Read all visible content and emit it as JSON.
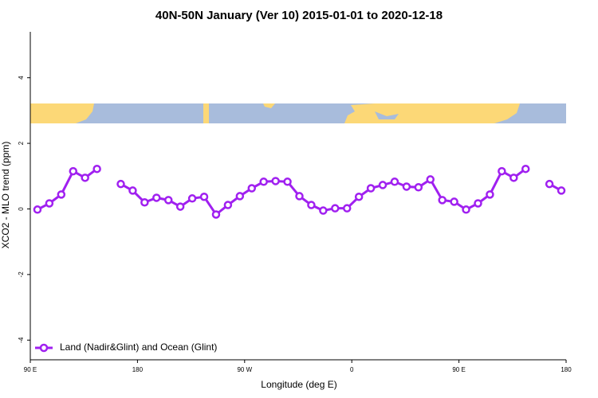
{
  "chart_data": {
    "type": "line",
    "title": "40N-50N January (Ver 10)   2015-01-01 to 2020-12-18",
    "x_label": "Longitude (deg E)",
    "y_label": "XCO2 - MLO trend (ppm)",
    "x": [
      96,
      106,
      116,
      126,
      136,
      146,
      156,
      166,
      176,
      186,
      196,
      206,
      216,
      226,
      236,
      246,
      256,
      266,
      276,
      286,
      296,
      306,
      316,
      326,
      336,
      346,
      356,
      366,
      376,
      386,
      396,
      406,
      416,
      426,
      436,
      446,
      456,
      466,
      476,
      486,
      496,
      506,
      516,
      526,
      536
    ],
    "series": [
      {
        "name": "Land (Nadir&Glint) and Ocean (Glint)",
        "color": "#a020f0",
        "values": [
          -0.02,
          0.17,
          0.44,
          1.15,
          0.95,
          1.22,
          null,
          0.76,
          0.56,
          0.2,
          0.34,
          0.27,
          0.07,
          0.32,
          0.37,
          -0.17,
          0.12,
          0.39,
          0.63,
          0.83,
          0.85,
          0.83,
          0.39,
          0.12,
          -0.05,
          0.02,
          0.02,
          0.37,
          0.63,
          0.73,
          0.83,
          0.68,
          0.66,
          0.9,
          0.27,
          0.22,
          -0.02,
          0.17,
          0.44,
          1.15,
          0.95,
          1.22,
          null,
          0.76,
          0.56
        ]
      }
    ],
    "xlim": [
      90,
      540
    ],
    "xticks": [
      {
        "value": 90,
        "label": "90 E"
      },
      {
        "value": 180,
        "label": "180"
      },
      {
        "value": 270,
        "label": "90 W"
      },
      {
        "value": 360,
        "label": "0"
      },
      {
        "value": 450,
        "label": "90 E"
      },
      {
        "value": 540,
        "label": "180"
      }
    ],
    "ylim": [
      -4.6,
      5.4
    ],
    "yticks": [
      -4,
      -2,
      0,
      2,
      4
    ],
    "legend": "bottom-left"
  }
}
